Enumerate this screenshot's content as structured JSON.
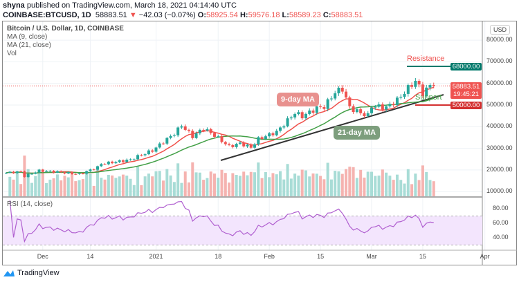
{
  "header": {
    "author": "shyna",
    "published": "published on TradingView.com, March 18, 2021 04:14:40 UTC",
    "symbol": "COINBASE:BTCUSD, 1D",
    "last": "58883.51",
    "change": "−42.03 (−0.07%)",
    "o_label": "O:",
    "open": "58925.54",
    "h_label": "H:",
    "high": "59576.18",
    "l_label": "L:",
    "low": "58589.23",
    "c_label": "C:",
    "close": "58883.51"
  },
  "legend": {
    "title": "Bitcoin / U.S. Dollar, 1D, COINBASE",
    "ma9": "MA (9, close)",
    "ma21": "MA (21, close)",
    "vol": "Vol",
    "rsi": "RSI (14, close)",
    "currency": "USD"
  },
  "annotations": {
    "ma9": "9-day MA",
    "ma21": "21-day MA",
    "resistance": "Resistance",
    "support": "Support"
  },
  "price_tags": {
    "resistance": "68000.00",
    "last": "58883.51",
    "countdown": "19:45:21",
    "support": "50000.00"
  },
  "price_axis": [
    "80000.00",
    "70000.00",
    "60000.00",
    "50000.00",
    "40000.00",
    "30000.00",
    "20000.00",
    "10000.00"
  ],
  "rsi_axis": [
    "80.00",
    "60.00",
    "40.00"
  ],
  "time_axis": [
    "Dec",
    "14",
    "2021",
    "18",
    "Feb",
    "15",
    "Mar",
    "15",
    "Apr"
  ],
  "colors": {
    "up": "#26a69a",
    "down": "#ef5350",
    "ma9": "#f0504a",
    "ma21": "#43a047",
    "rsi": "#b05fd0",
    "resistance": "#00796b",
    "support": "#d32f2f"
  },
  "brand": "TradingView",
  "chart_data": {
    "type": "candlestick",
    "ylim": [
      5000,
      88000
    ],
    "close_keypoints": [
      [
        "2020-11-21",
        18700
      ],
      [
        "2020-11-25",
        19200
      ],
      [
        "2020-11-26",
        17100
      ],
      [
        "2020-11-30",
        19700
      ],
      [
        "2020-12-05",
        19100
      ],
      [
        "2020-12-11",
        18000
      ],
      [
        "2020-12-16",
        21300
      ],
      [
        "2020-12-17",
        22800
      ],
      [
        "2020-12-20",
        23500
      ],
      [
        "2020-12-25",
        24700
      ],
      [
        "2020-12-27",
        26300
      ],
      [
        "2020-12-31",
        29000
      ],
      [
        "2021-01-03",
        33000
      ],
      [
        "2021-01-06",
        36800
      ],
      [
        "2021-01-08",
        40600
      ],
      [
        "2021-01-11",
        35500
      ],
      [
        "2021-01-14",
        39200
      ],
      [
        "2021-01-17",
        36000
      ],
      [
        "2021-01-21",
        30800
      ],
      [
        "2021-01-24",
        32300
      ],
      [
        "2021-01-27",
        30400
      ],
      [
        "2021-01-29",
        34300
      ],
      [
        "2021-02-03",
        37600
      ],
      [
        "2021-02-08",
        46400
      ],
      [
        "2021-02-10",
        44800
      ],
      [
        "2021-02-14",
        48600
      ],
      [
        "2021-02-16",
        49200
      ],
      [
        "2021-02-19",
        55900
      ],
      [
        "2021-02-21",
        57500
      ],
      [
        "2021-02-23",
        48800
      ],
      [
        "2021-02-26",
        46300
      ],
      [
        "2021-02-28",
        45100
      ],
      [
        "2021-03-01",
        49600
      ],
      [
        "2021-03-05",
        48900
      ],
      [
        "2021-03-08",
        52300
      ],
      [
        "2021-03-11",
        57800
      ],
      [
        "2021-03-13",
        61200
      ],
      [
        "2021-03-15",
        55600
      ],
      [
        "2021-03-17",
        58900
      ],
      [
        "2021-03-18",
        58883.51
      ]
    ],
    "resistance": 68000,
    "support": 50000,
    "rsi_bands": [
      30,
      70
    ]
  }
}
